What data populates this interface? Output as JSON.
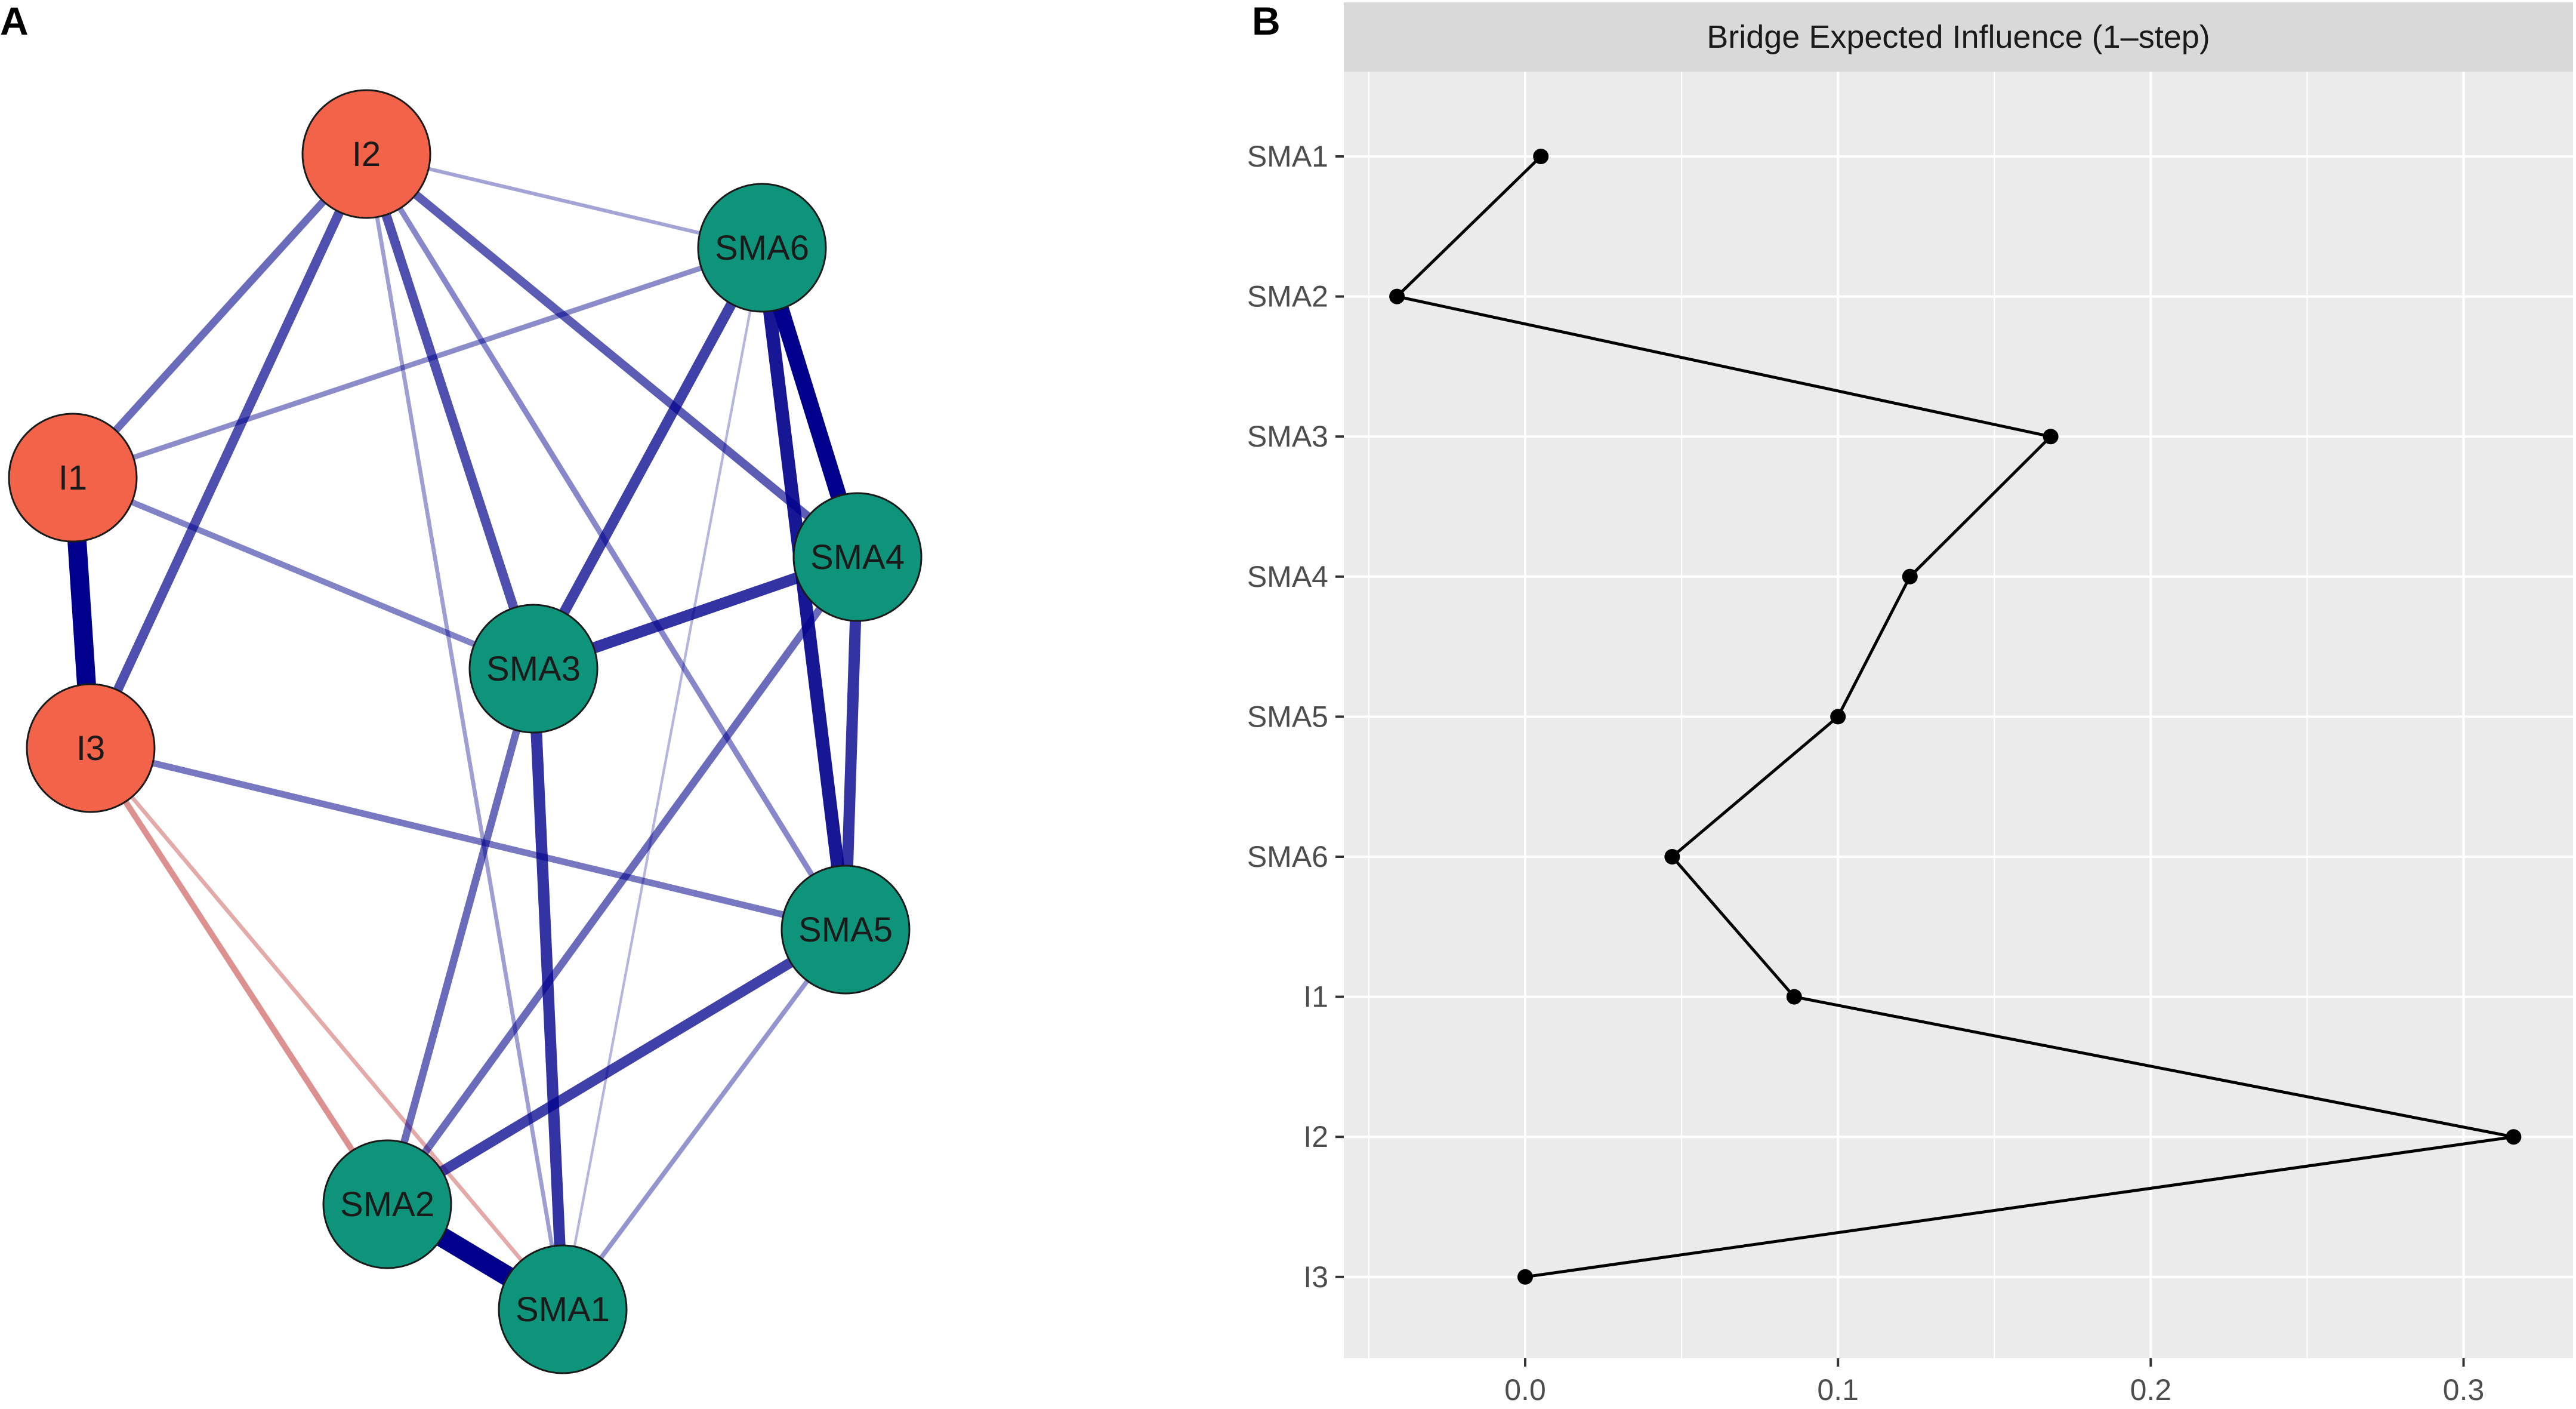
{
  "panel_a_label": "A",
  "panel_b_label": "B",
  "colors": {
    "intervention_node": "#f26349",
    "sma_node": "#0d947a",
    "positive_edge": "#00008c",
    "negative_edge": "#b81c1c",
    "panel_background": "#ebebeb",
    "strip_background": "#d9d9d9",
    "grid": "#ffffff"
  },
  "network": {
    "nodes": [
      {
        "id": "I2",
        "label": "I2",
        "group": "intervention"
      },
      {
        "id": "I1",
        "label": "I1",
        "group": "intervention"
      },
      {
        "id": "I3",
        "label": "I3",
        "group": "intervention"
      },
      {
        "id": "SMA6",
        "label": "SMA6",
        "group": "sma"
      },
      {
        "id": "SMA4",
        "label": "SMA4",
        "group": "sma"
      },
      {
        "id": "SMA3",
        "label": "SMA3",
        "group": "sma"
      },
      {
        "id": "SMA5",
        "label": "SMA5",
        "group": "sma"
      },
      {
        "id": "SMA2",
        "label": "SMA2",
        "group": "sma"
      },
      {
        "id": "SMA1",
        "label": "SMA1",
        "group": "sma"
      }
    ],
    "edges": [
      {
        "from": "SMA2",
        "to": "SMA1",
        "weight": 0.95,
        "sign": "positive"
      },
      {
        "from": "I1",
        "to": "I3",
        "weight": 0.9,
        "sign": "positive"
      },
      {
        "from": "SMA6",
        "to": "SMA4",
        "weight": 0.75,
        "sign": "positive"
      },
      {
        "from": "SMA6",
        "to": "SMA5",
        "weight": 0.6,
        "sign": "positive"
      },
      {
        "from": "SMA3",
        "to": "SMA1",
        "weight": 0.5,
        "sign": "positive"
      },
      {
        "from": "SMA4",
        "to": "SMA5",
        "weight": 0.5,
        "sign": "positive"
      },
      {
        "from": "SMA3",
        "to": "SMA4",
        "weight": 0.5,
        "sign": "positive"
      },
      {
        "from": "SMA6",
        "to": "SMA3",
        "weight": 0.45,
        "sign": "positive"
      },
      {
        "from": "SMA5",
        "to": "SMA2",
        "weight": 0.45,
        "sign": "positive"
      },
      {
        "from": "I2",
        "to": "I3",
        "weight": 0.4,
        "sign": "positive"
      },
      {
        "from": "I2",
        "to": "SMA3",
        "weight": 0.4,
        "sign": "positive"
      },
      {
        "from": "I2",
        "to": "SMA4",
        "weight": 0.35,
        "sign": "positive"
      },
      {
        "from": "SMA4",
        "to": "SMA2",
        "weight": 0.3,
        "sign": "positive"
      },
      {
        "from": "I2",
        "to": "I1",
        "weight": 0.3,
        "sign": "positive"
      },
      {
        "from": "SMA3",
        "to": "SMA2",
        "weight": 0.3,
        "sign": "positive"
      },
      {
        "from": "I3",
        "to": "SMA5",
        "weight": 0.25,
        "sign": "positive"
      },
      {
        "from": "I1",
        "to": "SMA3",
        "weight": 0.22,
        "sign": "positive"
      },
      {
        "from": "I2",
        "to": "SMA5",
        "weight": 0.2,
        "sign": "positive"
      },
      {
        "from": "I1",
        "to": "SMA6",
        "weight": 0.18,
        "sign": "positive"
      },
      {
        "from": "SMA5",
        "to": "SMA1",
        "weight": 0.15,
        "sign": "positive"
      },
      {
        "from": "I2",
        "to": "SMA1",
        "weight": 0.12,
        "sign": "positive"
      },
      {
        "from": "I2",
        "to": "SMA6",
        "weight": 0.1,
        "sign": "positive"
      },
      {
        "from": "SMA6",
        "to": "SMA1",
        "weight": 0.04,
        "sign": "positive"
      },
      {
        "from": "I3",
        "to": "SMA2",
        "weight": 0.22,
        "sign": "negative"
      },
      {
        "from": "I3",
        "to": "SMA1",
        "weight": 0.12,
        "sign": "negative"
      }
    ]
  },
  "chart_data": {
    "type": "line",
    "title": "Bridge Expected Influence (1–step)",
    "xlabel": "",
    "ylabel": "",
    "categories": [
      "SMA1",
      "SMA2",
      "SMA3",
      "SMA4",
      "SMA5",
      "SMA6",
      "I1",
      "I2",
      "I3"
    ],
    "values": [
      0.005,
      -0.041,
      0.168,
      0.123,
      0.1,
      0.047,
      0.086,
      0.316,
      0.0
    ],
    "xlim": [
      -0.058,
      0.335
    ],
    "x_ticks": [
      0.0,
      0.1,
      0.2,
      0.3
    ],
    "x_tick_labels": [
      "0.0",
      "0.1",
      "0.2",
      "0.3"
    ],
    "grid": true,
    "orientation": "horizontal-values"
  }
}
